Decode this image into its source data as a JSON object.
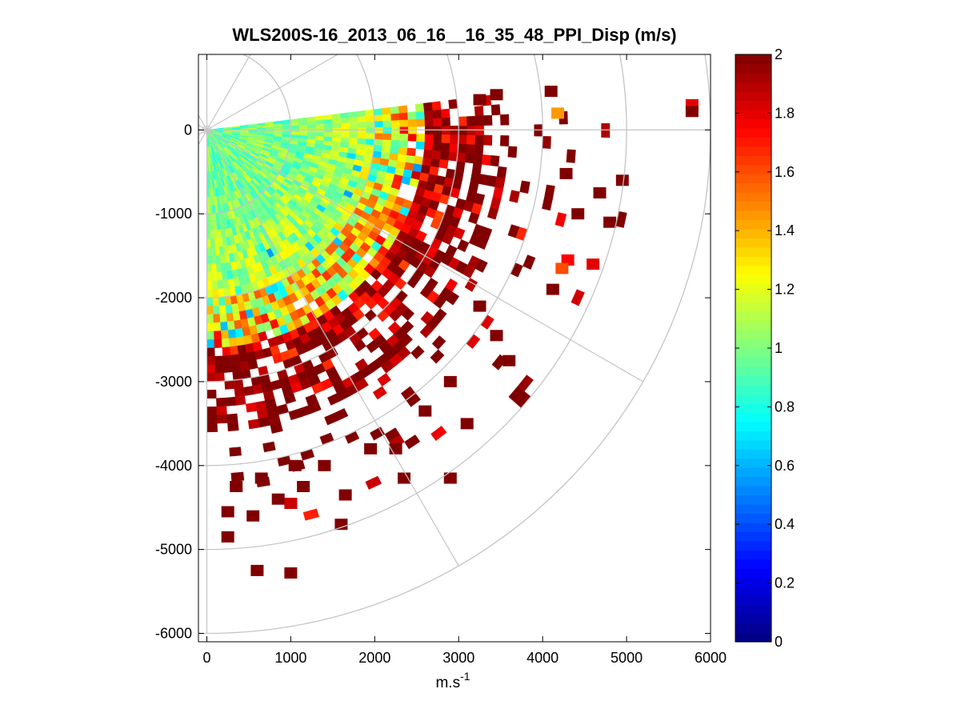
{
  "chart_data": {
    "type": "heatmap",
    "subtype": "polar-ppi",
    "title": "WLS200S-16_2013_06_16__16_35_48_PPI_Disp (m/s)",
    "xlabel": "m.s",
    "xlabel_sup": "-1",
    "ylabel": "",
    "xlim": [
      -100,
      6000
    ],
    "ylim": [
      -6100,
      900
    ],
    "x_ticks": [
      0,
      1000,
      2000,
      3000,
      4000,
      5000,
      6000
    ],
    "y_ticks": [
      0,
      -1000,
      -2000,
      -3000,
      -4000,
      -5000,
      -6000
    ],
    "range_rings_m": [
      1000,
      2000,
      3000,
      4000,
      5000,
      6000
    ],
    "radial_spokes_deg": [
      0,
      30,
      60,
      90
    ],
    "sector": {
      "azimuth_from_deg": -90,
      "azimuth_to_deg": 7,
      "r_min_m": 0,
      "r_max_m": 5200
    },
    "colorbar": {
      "min": 0,
      "max": 2,
      "ticks": [
        "0",
        "0.2",
        "0.4",
        "0.6",
        "0.8",
        "1",
        "1.2",
        "1.4",
        "1.6",
        "1.8",
        "2"
      ],
      "colormap": "jet"
    },
    "radial_profile": [
      {
        "r_m": 0,
        "value": 0.95
      },
      {
        "r_m": 1000,
        "value": 1.0
      },
      {
        "r_m": 1800,
        "value": 1.1
      },
      {
        "r_m": 2400,
        "value": 1.35
      },
      {
        "r_m": 2900,
        "value": 1.75
      },
      {
        "r_m": 3500,
        "value": 2.0
      },
      {
        "r_m": 5200,
        "value": 2.0
      }
    ],
    "scattered_cells": [
      {
        "x": 4100,
        "y": 460,
        "value": 2.0
      },
      {
        "x": 3450,
        "y": 420,
        "value": 2.0
      },
      {
        "x": 3250,
        "y": 360,
        "value": 2.0
      },
      {
        "x": 4180,
        "y": 200,
        "value": 1.45
      },
      {
        "x": 5780,
        "y": 300,
        "value": 1.8
      },
      {
        "x": 5780,
        "y": 220,
        "value": 2.0
      },
      {
        "x": 4280,
        "y": -520,
        "value": 2.0
      },
      {
        "x": 4680,
        "y": -750,
        "value": 2.0
      },
      {
        "x": 4950,
        "y": -600,
        "value": 2.0
      },
      {
        "x": 4420,
        "y": -1000,
        "value": 2.0
      },
      {
        "x": 4800,
        "y": -1100,
        "value": 2.0
      },
      {
        "x": 4300,
        "y": -1550,
        "value": 1.75
      },
      {
        "x": 4230,
        "y": -1650,
        "value": 1.6
      },
      {
        "x": 4600,
        "y": -1600,
        "value": 1.8
      },
      {
        "x": 4120,
        "y": -1900,
        "value": 2.0
      },
      {
        "x": 3250,
        "y": -2100,
        "value": 2.0
      },
      {
        "x": 3450,
        "y": -2450,
        "value": 2.0
      },
      {
        "x": 3600,
        "y": -2750,
        "value": 2.0
      },
      {
        "x": 2900,
        "y": -3000,
        "value": 2.0
      },
      {
        "x": 3100,
        "y": -3500,
        "value": 2.0
      },
      {
        "x": 2600,
        "y": -3350,
        "value": 2.0
      },
      {
        "x": 1950,
        "y": -3800,
        "value": 2.0
      },
      {
        "x": 2250,
        "y": -3800,
        "value": 2.0
      },
      {
        "x": 2350,
        "y": -4150,
        "value": 2.0
      },
      {
        "x": 2900,
        "y": -4150,
        "value": 2.0
      },
      {
        "x": 1400,
        "y": -4000,
        "value": 2.0
      },
      {
        "x": 1050,
        "y": -4000,
        "value": 2.0
      },
      {
        "x": 1650,
        "y": -4350,
        "value": 2.0
      },
      {
        "x": 1150,
        "y": -4250,
        "value": 2.0
      },
      {
        "x": 1000,
        "y": -4450,
        "value": 1.85
      },
      {
        "x": 350,
        "y": -4250,
        "value": 2.0
      },
      {
        "x": 650,
        "y": -4150,
        "value": 2.0
      },
      {
        "x": 850,
        "y": -4400,
        "value": 2.0
      },
      {
        "x": 550,
        "y": -4600,
        "value": 2.0
      },
      {
        "x": 250,
        "y": -4550,
        "value": 2.0
      },
      {
        "x": 250,
        "y": -4850,
        "value": 2.0
      },
      {
        "x": 1600,
        "y": -4700,
        "value": 2.0
      },
      {
        "x": 600,
        "y": -5250,
        "value": 2.0
      },
      {
        "x": 1000,
        "y": -5280,
        "value": 2.0
      }
    ]
  }
}
